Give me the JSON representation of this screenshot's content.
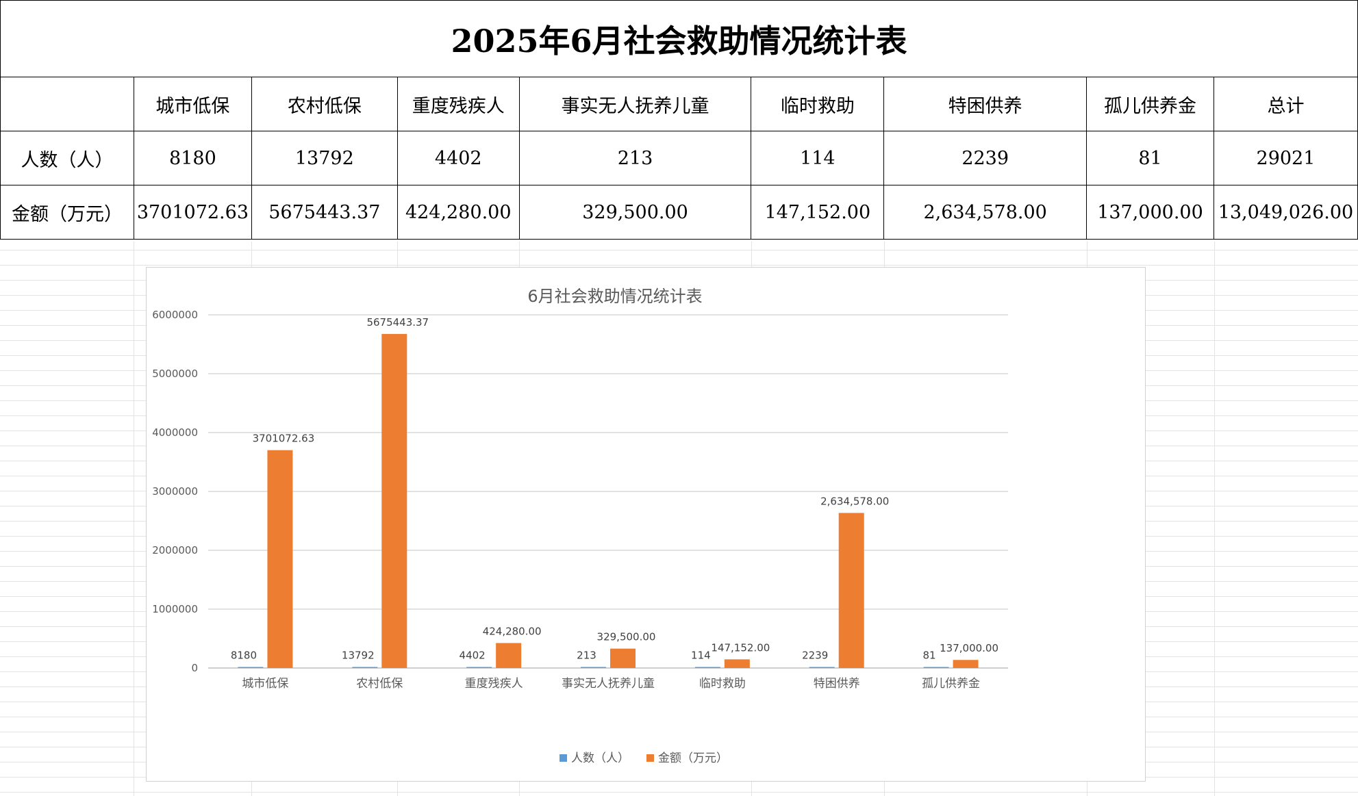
{
  "title": "2025年6月社会救助情况统计表",
  "table": {
    "headers": [
      "",
      "城市低保",
      "农村低保",
      "重度残疾人",
      "事实无人抚养儿童",
      "临时救助",
      "特困供养",
      "孤儿供养金",
      "总计"
    ],
    "rows": [
      {
        "label": "人数（人）",
        "cells": [
          "8180",
          "13792",
          "4402",
          "213",
          "114",
          "2239",
          "81",
          "29021"
        ]
      },
      {
        "label": "金额（万元）",
        "cells": [
          "3701072.63",
          "5675443.37",
          "424,280.00",
          "329,500.00",
          "147,152.00",
          "2,634,578.00",
          "137,000.00",
          "13,049,026.00"
        ]
      }
    ]
  },
  "chart_data": {
    "type": "bar",
    "title": "6月社会救助情况统计表",
    "categories": [
      "城市低保",
      "农村低保",
      "重度残疾人",
      "事实无人抚养儿童",
      "临时救助",
      "特困供养",
      "孤儿供养金"
    ],
    "series": [
      {
        "name": "人数（人）",
        "color": "#5b9bd5",
        "values": [
          8180,
          13792,
          4402,
          213,
          114,
          2239,
          81
        ],
        "labels": [
          "8180",
          "13792",
          "4402",
          "213",
          "114",
          "2239",
          "81"
        ]
      },
      {
        "name": "金额（万元）",
        "color": "#ed7d31",
        "values": [
          3701072.63,
          5675443.37,
          424280,
          329500,
          147152,
          2634578,
          137000
        ],
        "labels": [
          "3701072.63",
          "5675443.37",
          "424,280.00",
          "329,500.00",
          "147,152.00",
          "2,634,578.00",
          "137,000.00"
        ]
      }
    ],
    "ylim": [
      0,
      6000000
    ],
    "yticks": [
      "0",
      "1000000",
      "2000000",
      "3000000",
      "4000000",
      "5000000",
      "6000000"
    ],
    "grid": true,
    "legend": "bottom"
  }
}
